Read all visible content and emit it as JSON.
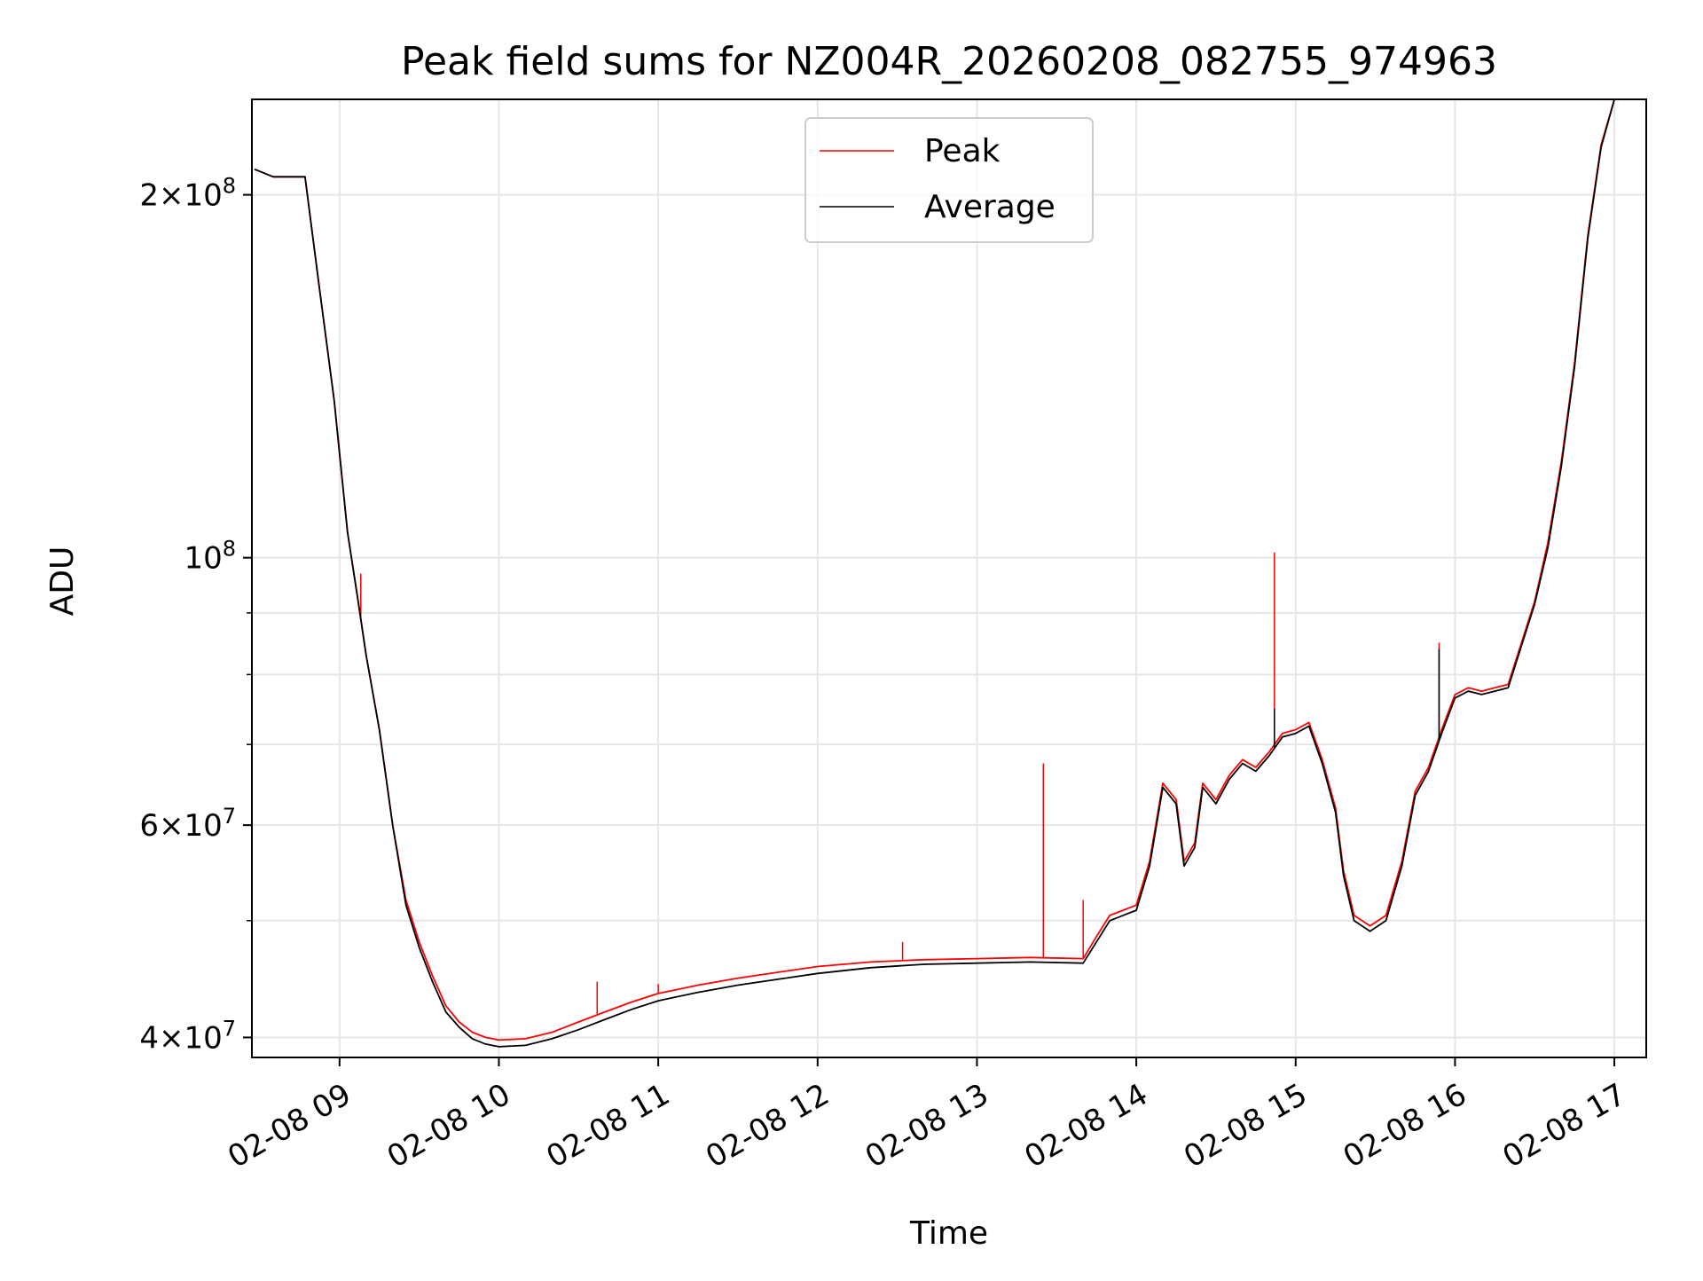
{
  "chart_data": {
    "type": "line",
    "title": "Peak field sums for NZ004R_20260208_082755_974963",
    "xlabel": "Time",
    "ylabel": "ADU",
    "yscale": "log",
    "ylim": [
      38500000,
      240000000
    ],
    "xlim": [
      "2026-02-08 08:27",
      "2026-02-08 17:12"
    ],
    "grid": true,
    "legend_placement": "upper center",
    "x_ticks": [
      {
        "x": "2026-02-08 09:00",
        "label": "02-08 09"
      },
      {
        "x": "2026-02-08 10:00",
        "label": "02-08 10"
      },
      {
        "x": "2026-02-08 11:00",
        "label": "02-08 11"
      },
      {
        "x": "2026-02-08 12:00",
        "label": "02-08 12"
      },
      {
        "x": "2026-02-08 13:00",
        "label": "02-08 13"
      },
      {
        "x": "2026-02-08 14:00",
        "label": "02-08 14"
      },
      {
        "x": "2026-02-08 15:00",
        "label": "02-08 15"
      },
      {
        "x": "2026-02-08 16:00",
        "label": "02-08 16"
      },
      {
        "x": "2026-02-08 17:00",
        "label": "02-08 17"
      }
    ],
    "y_ticks_major": [
      {
        "y": 40000000,
        "base": "4",
        "exp": "7"
      },
      {
        "y": 60000000,
        "base": "6",
        "exp": "7"
      },
      {
        "y": 100000000,
        "base": "",
        "exp": "8"
      },
      {
        "y": 200000000,
        "base": "2",
        "exp": "8"
      }
    ],
    "y_ticks_minor": [
      50000000,
      70000000,
      80000000,
      90000000
    ],
    "series": [
      {
        "name": "Peak",
        "color": "#ff0000",
        "points": [
          [
            "2026-02-08 08:28",
            210000000
          ],
          [
            "2026-02-08 08:35",
            207000000
          ],
          [
            "2026-02-08 08:47",
            207000000
          ],
          [
            "2026-02-08 08:52",
            170000000
          ],
          [
            "2026-02-08 08:58",
            135000000
          ],
          [
            "2026-02-08 09:03",
            105000000
          ],
          [
            "2026-02-08 09:07",
            92000000
          ],
          [
            "2026-02-08 09:10",
            83000000
          ],
          [
            "2026-02-08 09:15",
            72000000
          ],
          [
            "2026-02-08 09:20",
            60000000
          ],
          [
            "2026-02-08 09:25",
            52000000
          ],
          [
            "2026-02-08 09:30",
            48000000
          ],
          [
            "2026-02-08 09:35",
            45000000
          ],
          [
            "2026-02-08 09:40",
            42500000
          ],
          [
            "2026-02-08 09:45",
            41200000
          ],
          [
            "2026-02-08 09:50",
            40400000
          ],
          [
            "2026-02-08 09:55",
            40000000
          ],
          [
            "2026-02-08 10:00",
            39800000
          ],
          [
            "2026-02-08 10:10",
            39900000
          ],
          [
            "2026-02-08 10:20",
            40400000
          ],
          [
            "2026-02-08 10:30",
            41200000
          ],
          [
            "2026-02-08 10:40",
            42000000
          ],
          [
            "2026-02-08 10:50",
            42800000
          ],
          [
            "2026-02-08 11:00",
            43500000
          ],
          [
            "2026-02-08 11:15",
            44200000
          ],
          [
            "2026-02-08 11:30",
            44800000
          ],
          [
            "2026-02-08 11:45",
            45300000
          ],
          [
            "2026-02-08 12:00",
            45800000
          ],
          [
            "2026-02-08 12:20",
            46200000
          ],
          [
            "2026-02-08 12:40",
            46400000
          ],
          [
            "2026-02-08 13:00",
            46500000
          ],
          [
            "2026-02-08 13:20",
            46600000
          ],
          [
            "2026-02-08 13:40",
            46500000
          ],
          [
            "2026-02-08 13:45",
            48500000
          ],
          [
            "2026-02-08 13:50",
            50500000
          ],
          [
            "2026-02-08 13:55",
            51000000
          ],
          [
            "2026-02-08 14:00",
            51500000
          ],
          [
            "2026-02-08 14:05",
            56000000
          ],
          [
            "2026-02-08 14:10",
            65000000
          ],
          [
            "2026-02-08 14:15",
            63000000
          ],
          [
            "2026-02-08 14:18",
            56000000
          ],
          [
            "2026-02-08 14:22",
            58000000
          ],
          [
            "2026-02-08 14:25",
            65000000
          ],
          [
            "2026-02-08 14:30",
            63000000
          ],
          [
            "2026-02-08 14:35",
            66000000
          ],
          [
            "2026-02-08 14:40",
            68000000
          ],
          [
            "2026-02-08 14:45",
            67000000
          ],
          [
            "2026-02-08 14:50",
            69000000
          ],
          [
            "2026-02-08 14:55",
            71500000
          ],
          [
            "2026-02-08 15:00",
            72000000
          ],
          [
            "2026-02-08 15:05",
            73000000
          ],
          [
            "2026-02-08 15:10",
            68000000
          ],
          [
            "2026-02-08 15:15",
            62000000
          ],
          [
            "2026-02-08 15:18",
            55000000
          ],
          [
            "2026-02-08 15:22",
            50500000
          ],
          [
            "2026-02-08 15:28",
            49500000
          ],
          [
            "2026-02-08 15:34",
            50500000
          ],
          [
            "2026-02-08 15:40",
            56000000
          ],
          [
            "2026-02-08 15:45",
            64000000
          ],
          [
            "2026-02-08 15:50",
            67000000
          ],
          [
            "2026-02-08 15:55",
            72000000
          ],
          [
            "2026-02-08 16:00",
            77000000
          ],
          [
            "2026-02-08 16:05",
            78000000
          ],
          [
            "2026-02-08 16:10",
            77500000
          ],
          [
            "2026-02-08 16:15",
            78000000
          ],
          [
            "2026-02-08 16:20",
            78500000
          ],
          [
            "2026-02-08 16:25",
            85000000
          ],
          [
            "2026-02-08 16:30",
            92000000
          ],
          [
            "2026-02-08 16:35",
            103000000
          ],
          [
            "2026-02-08 16:40",
            120000000
          ],
          [
            "2026-02-08 16:45",
            145000000
          ],
          [
            "2026-02-08 16:50",
            185000000
          ],
          [
            "2026-02-08 16:55",
            220000000
          ],
          [
            "2026-02-08 17:00",
            240000000
          ]
        ],
        "spikes": [
          [
            "2026-02-08 09:08",
            97000000
          ],
          [
            "2026-02-08 10:37",
            44500000
          ],
          [
            "2026-02-08 11:00",
            44300000
          ],
          [
            "2026-02-08 12:32",
            48000000
          ],
          [
            "2026-02-08 13:25",
            67500000
          ],
          [
            "2026-02-08 13:40",
            52000000
          ],
          [
            "2026-02-08 14:52",
            101000000
          ],
          [
            "2026-02-08 15:54",
            85000000
          ]
        ]
      },
      {
        "name": "Average",
        "color": "#000000",
        "points": [
          [
            "2026-02-08 08:28",
            210000000
          ],
          [
            "2026-02-08 08:35",
            207000000
          ],
          [
            "2026-02-08 08:47",
            207000000
          ],
          [
            "2026-02-08 08:52",
            170000000
          ],
          [
            "2026-02-08 08:58",
            135000000
          ],
          [
            "2026-02-08 09:03",
            105000000
          ],
          [
            "2026-02-08 09:07",
            92000000
          ],
          [
            "2026-02-08 09:10",
            83000000
          ],
          [
            "2026-02-08 09:15",
            72000000
          ],
          [
            "2026-02-08 09:20",
            60000000
          ],
          [
            "2026-02-08 09:25",
            51500000
          ],
          [
            "2026-02-08 09:30",
            47500000
          ],
          [
            "2026-02-08 09:35",
            44500000
          ],
          [
            "2026-02-08 09:40",
            42000000
          ],
          [
            "2026-02-08 09:45",
            40800000
          ],
          [
            "2026-02-08 09:50",
            39900000
          ],
          [
            "2026-02-08 09:55",
            39500000
          ],
          [
            "2026-02-08 10:00",
            39300000
          ],
          [
            "2026-02-08 10:10",
            39400000
          ],
          [
            "2026-02-08 10:20",
            39900000
          ],
          [
            "2026-02-08 10:30",
            40600000
          ],
          [
            "2026-02-08 10:40",
            41400000
          ],
          [
            "2026-02-08 10:50",
            42200000
          ],
          [
            "2026-02-08 11:00",
            42900000
          ],
          [
            "2026-02-08 11:15",
            43600000
          ],
          [
            "2026-02-08 11:30",
            44200000
          ],
          [
            "2026-02-08 11:45",
            44700000
          ],
          [
            "2026-02-08 12:00",
            45200000
          ],
          [
            "2026-02-08 12:20",
            45700000
          ],
          [
            "2026-02-08 12:40",
            46000000
          ],
          [
            "2026-02-08 13:00",
            46100000
          ],
          [
            "2026-02-08 13:20",
            46200000
          ],
          [
            "2026-02-08 13:40",
            46100000
          ],
          [
            "2026-02-08 13:45",
            48000000
          ],
          [
            "2026-02-08 13:50",
            50000000
          ],
          [
            "2026-02-08 13:55",
            50500000
          ],
          [
            "2026-02-08 14:00",
            51000000
          ],
          [
            "2026-02-08 14:05",
            55500000
          ],
          [
            "2026-02-08 14:10",
            64500000
          ],
          [
            "2026-02-08 14:15",
            62500000
          ],
          [
            "2026-02-08 14:18",
            55500000
          ],
          [
            "2026-02-08 14:22",
            57500000
          ],
          [
            "2026-02-08 14:25",
            64500000
          ],
          [
            "2026-02-08 14:30",
            62500000
          ],
          [
            "2026-02-08 14:35",
            65500000
          ],
          [
            "2026-02-08 14:40",
            67500000
          ],
          [
            "2026-02-08 14:45",
            66500000
          ],
          [
            "2026-02-08 14:50",
            68500000
          ],
          [
            "2026-02-08 14:55",
            71000000
          ],
          [
            "2026-02-08 15:00",
            71500000
          ],
          [
            "2026-02-08 15:05",
            72500000
          ],
          [
            "2026-02-08 15:10",
            67500000
          ],
          [
            "2026-02-08 15:15",
            61500000
          ],
          [
            "2026-02-08 15:18",
            54500000
          ],
          [
            "2026-02-08 15:22",
            50000000
          ],
          [
            "2026-02-08 15:28",
            49000000
          ],
          [
            "2026-02-08 15:34",
            50000000
          ],
          [
            "2026-02-08 15:40",
            55500000
          ],
          [
            "2026-02-08 15:45",
            63500000
          ],
          [
            "2026-02-08 15:50",
            66500000
          ],
          [
            "2026-02-08 15:55",
            71500000
          ],
          [
            "2026-02-08 16:00",
            76500000
          ],
          [
            "2026-02-08 16:05",
            77500000
          ],
          [
            "2026-02-08 16:10",
            77000000
          ],
          [
            "2026-02-08 16:15",
            77500000
          ],
          [
            "2026-02-08 16:20",
            78000000
          ],
          [
            "2026-02-08 16:25",
            84500000
          ],
          [
            "2026-02-08 16:30",
            91500000
          ],
          [
            "2026-02-08 16:35",
            102000000
          ],
          [
            "2026-02-08 16:40",
            119000000
          ],
          [
            "2026-02-08 16:45",
            144000000
          ],
          [
            "2026-02-08 16:50",
            184000000
          ],
          [
            "2026-02-08 16:55",
            219000000
          ],
          [
            "2026-02-08 17:00",
            240000000
          ]
        ],
        "spikes": [
          [
            "2026-02-08 14:52",
            75000000
          ],
          [
            "2026-02-08 15:54",
            84000000
          ]
        ]
      }
    ]
  }
}
